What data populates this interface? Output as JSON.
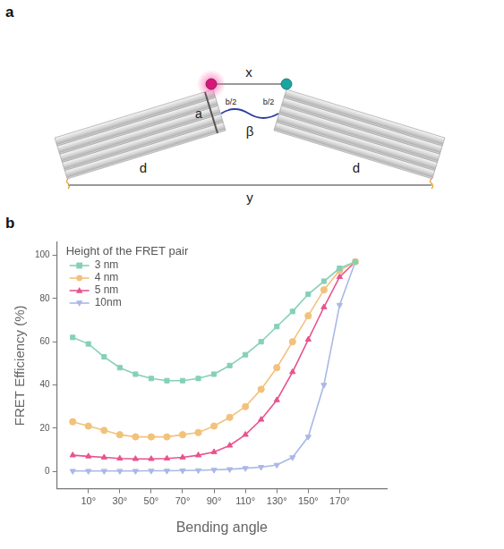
{
  "panels": [
    "a",
    "b"
  ],
  "diagram": {
    "labels": {
      "x": "x",
      "a": "a",
      "b_half": [
        "b/2",
        "b/2"
      ],
      "angle": "β",
      "d": [
        "d",
        "d"
      ],
      "y": "y"
    }
  },
  "chart_data": {
    "type": "line",
    "legend_title": "Height of the FRET pair",
    "legend": "upper left",
    "x_label": "Bending angle",
    "y_label": "FRET Efficiency (%)",
    "x": [
      0,
      10,
      20,
      30,
      40,
      50,
      60,
      70,
      80,
      90,
      100,
      110,
      120,
      130,
      140,
      150,
      160,
      170,
      180
    ],
    "series": [
      {
        "name": "3 nm",
        "color": "#86d0b8",
        "marker": "square",
        "values": [
          62,
          59,
          53,
          48,
          45,
          43,
          42,
          42,
          43,
          45,
          49,
          54,
          60,
          67,
          74,
          82,
          88,
          94,
          97
        ]
      },
      {
        "name": "4 nm",
        "color": "#f2c27c",
        "marker": "circle",
        "values": [
          23,
          21,
          19,
          17,
          16,
          16,
          16,
          17,
          18,
          21,
          25,
          30,
          38,
          48,
          60,
          72,
          84,
          93,
          97
        ]
      },
      {
        "name": "5 nm",
        "color": "#e8538f",
        "marker": "triangle",
        "values": [
          7.5,
          7,
          6.5,
          6,
          5.8,
          5.8,
          6,
          6.5,
          7.5,
          9,
          12,
          17,
          24,
          33,
          46,
          61,
          76,
          90,
          97
        ]
      },
      {
        "name": "10nm",
        "color": "#a9b8e6",
        "marker": "triangle_down",
        "values": [
          0.2,
          0.2,
          0.2,
          0.2,
          0.2,
          0.3,
          0.3,
          0.4,
          0.5,
          0.7,
          1,
          1.5,
          2,
          3,
          6.5,
          16,
          40,
          77,
          97
        ]
      }
    ],
    "xlim": [
      -10,
      200
    ],
    "xticks": [
      {
        "value": 10,
        "label": "10°"
      },
      {
        "value": 30,
        "label": "30°"
      },
      {
        "value": 50,
        "label": "50°"
      },
      {
        "value": 70,
        "label": "70°"
      },
      {
        "value": 90,
        "label": "90°"
      },
      {
        "value": 110,
        "label": "110°"
      },
      {
        "value": 130,
        "label": "130°"
      },
      {
        "value": 150,
        "label": "150°"
      },
      {
        "value": 170,
        "label": "170°"
      }
    ],
    "ylim": [
      -8,
      106
    ],
    "yticks": [
      0,
      20,
      40,
      60,
      80,
      100
    ],
    "grid": false
  }
}
